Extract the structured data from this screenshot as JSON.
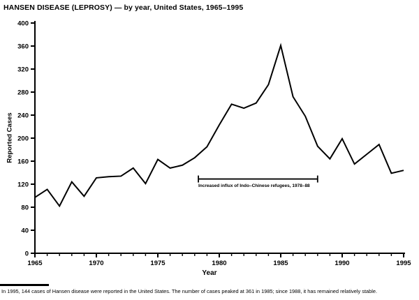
{
  "title": "HANSEN DISEASE (LEPROSY) — by year, United States, 1965–1995",
  "chart_data": {
    "type": "line",
    "title": "HANSEN DISEASE (LEPROSY) — by year, United States, 1965–1995",
    "xlabel": "Year",
    "ylabel": "Reported Cases",
    "x_range": [
      1965,
      1995
    ],
    "ylim": [
      0,
      400
    ],
    "y_ticks": [
      0,
      40,
      80,
      120,
      160,
      200,
      240,
      280,
      320,
      360,
      400
    ],
    "x_major_ticks": [
      1965,
      1970,
      1975,
      1980,
      1985,
      1990,
      1995
    ],
    "x_minor_tick_every_years": 1,
    "grid": false,
    "legend": "none",
    "line_color": "#000000",
    "x": [
      1965,
      1966,
      1967,
      1968,
      1969,
      1970,
      1971,
      1972,
      1973,
      1974,
      1975,
      1976,
      1977,
      1978,
      1979,
      1980,
      1981,
      1982,
      1983,
      1984,
      1985,
      1986,
      1987,
      1988,
      1989,
      1990,
      1991,
      1992,
      1993,
      1994,
      1995
    ],
    "values": [
      97,
      111,
      82,
      124,
      99,
      131,
      133,
      134,
      148,
      121,
      163,
      148,
      153,
      166,
      185,
      223,
      259,
      252,
      261,
      293,
      361,
      272,
      238,
      186,
      164,
      199,
      155,
      172,
      189,
      139,
      144
    ],
    "annotation": {
      "label": "Increased influx of Indo–Chinese refugees, 1978–88",
      "from_year": 1978.3,
      "to_year": 1988,
      "at_value": 129
    }
  },
  "footnote": "In 1995, 144 cases of Hansen disease were reported in the United States. The number of cases peaked at 361 in 1985; since 1988, it has remained relatively stable."
}
